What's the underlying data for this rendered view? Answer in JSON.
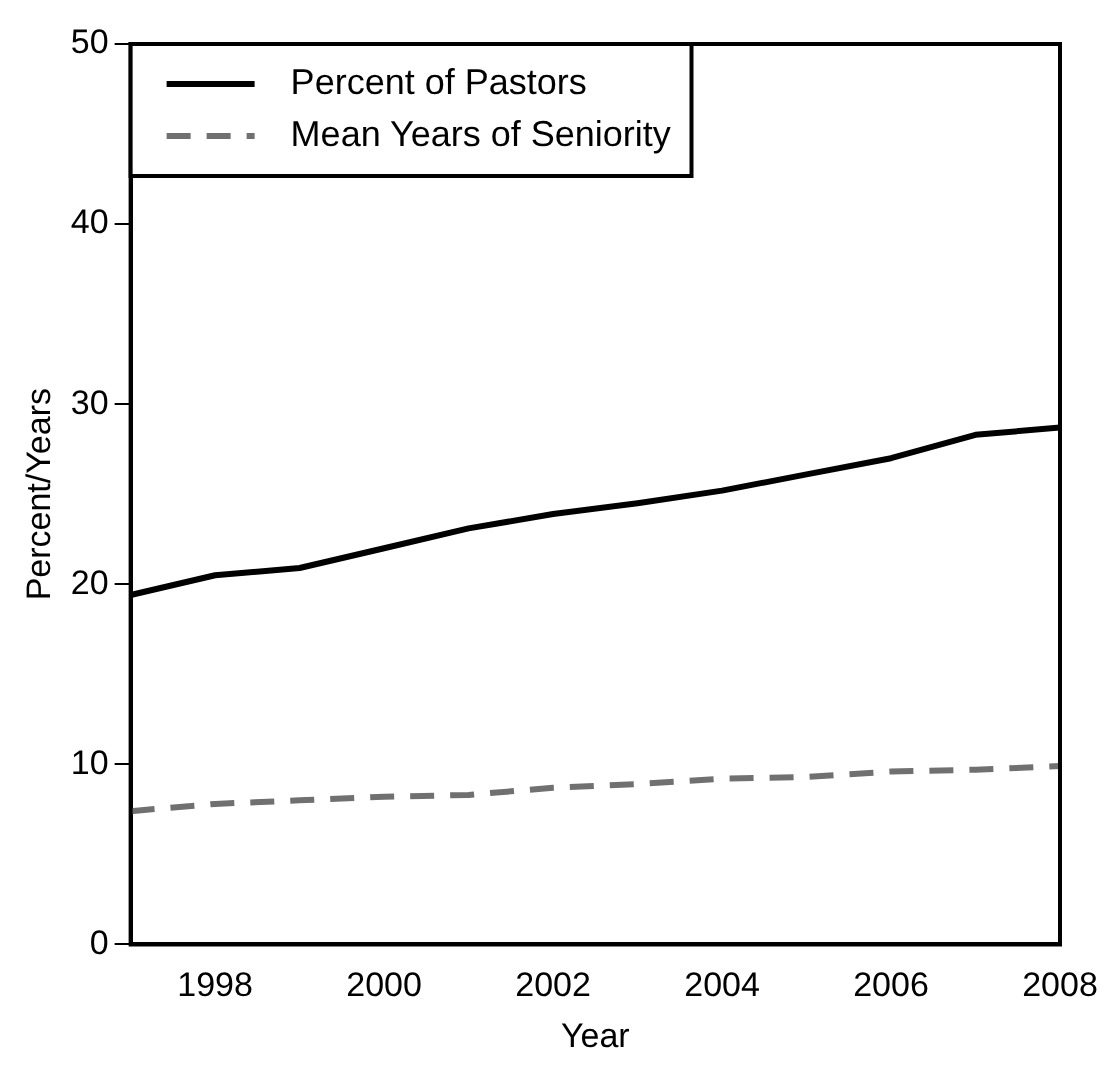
{
  "chart_data": {
    "type": "line",
    "xlabel": "Year",
    "ylabel": "Percent/Years",
    "x": [
      1997,
      1998,
      1999,
      2000,
      2001,
      2002,
      2003,
      2004,
      2005,
      2006,
      2007,
      2008
    ],
    "series": [
      {
        "name": "Percent of Pastors",
        "color": "#000000",
        "line_style": "solid",
        "values": [
          19.4,
          20.5,
          20.9,
          22.0,
          23.1,
          23.9,
          24.5,
          25.2,
          26.1,
          27.0,
          28.3,
          28.7
        ]
      },
      {
        "name": "Mean Years of Seniority",
        "color": "#707070",
        "line_style": "dashed",
        "values": [
          7.4,
          7.8,
          8.0,
          8.2,
          8.3,
          8.7,
          8.9,
          9.2,
          9.3,
          9.6,
          9.7,
          9.9
        ]
      }
    ],
    "xlim": [
      1997,
      2008
    ],
    "xticks": [
      1998,
      2000,
      2002,
      2004,
      2006,
      2008
    ],
    "ylim": [
      0,
      50
    ],
    "yticks": [
      0,
      10,
      20,
      30,
      40,
      50
    ],
    "grid": false,
    "legend": "top left",
    "marker": "none"
  }
}
